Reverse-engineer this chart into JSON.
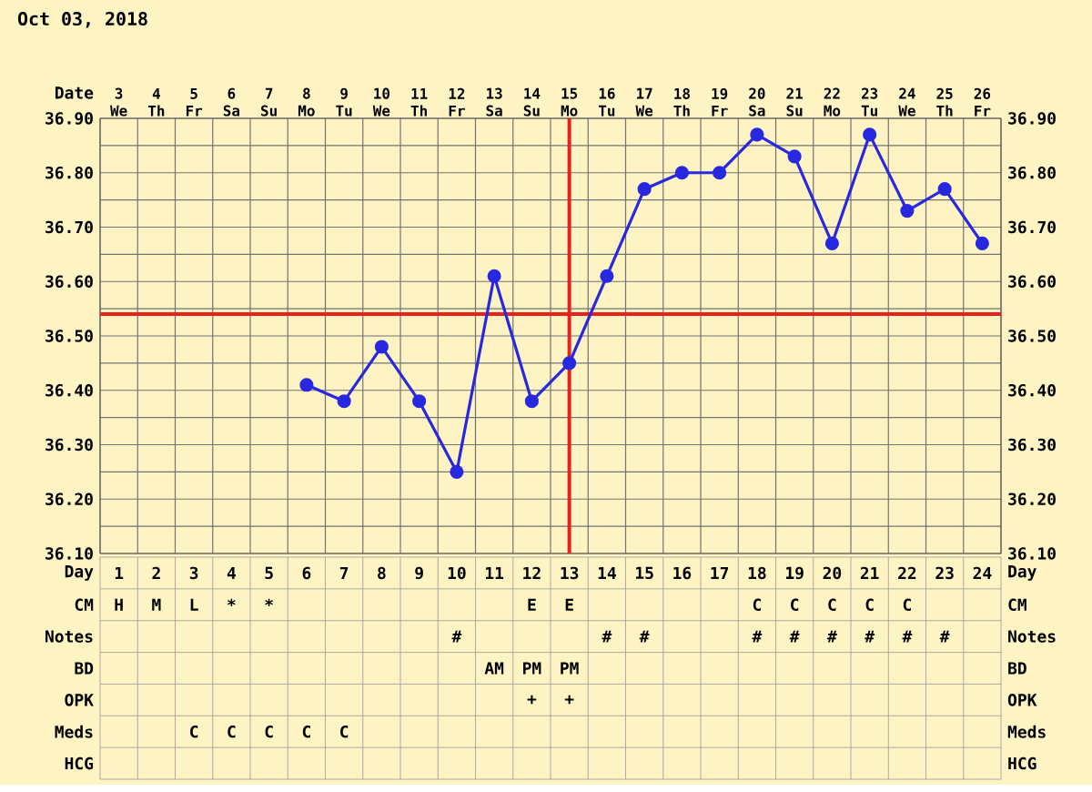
{
  "chart_data": [
    {
      "type": "line",
      "title": "Oct 03, 2018",
      "xlabel": "Date",
      "categories": [
        "3 We",
        "4 Th",
        "5 Fr",
        "6 Sa",
        "7 Su",
        "8 Mo",
        "9 Tu",
        "10 We",
        "11 Th",
        "12 Fr",
        "13 Sa",
        "14 Su",
        "15 Mo",
        "16 Tu",
        "17 We",
        "18 Th",
        "19 Fr",
        "20 Sa",
        "21 Su",
        "22 Mo",
        "23 Tu",
        "24 We",
        "25 Th",
        "26 Fr"
      ],
      "series": [
        {
          "color": "#2828e0",
          "values": [
            null,
            null,
            null,
            null,
            null,
            36.41,
            36.38,
            36.48,
            36.38,
            36.25,
            36.61,
            36.38,
            36.45,
            36.61,
            36.77,
            36.8,
            36.8,
            36.87,
            36.83,
            36.67,
            36.87,
            36.73,
            36.77,
            36.67
          ]
        }
      ],
      "ylim": [
        36.1,
        36.9
      ],
      "yticks": [
        {
          "value": 36.1,
          "label": "36.10"
        },
        {
          "value": 36.2,
          "label": "36.20"
        },
        {
          "value": 36.3,
          "label": "36.30"
        },
        {
          "value": 36.4,
          "label": "36.40"
        },
        {
          "value": 36.5,
          "label": "36.50"
        },
        {
          "value": 36.6,
          "label": "36.60"
        },
        {
          "value": 36.7,
          "label": "36.70"
        },
        {
          "value": 36.8,
          "label": "36.80"
        },
        {
          "value": 36.9,
          "label": "36.90"
        }
      ],
      "y2lim": [
        36.1,
        36.9
      ],
      "y2ticks": [
        {
          "value": 36.1,
          "label": "36.10"
        },
        {
          "value": 36.2,
          "label": "36.20"
        },
        {
          "value": 36.3,
          "label": "36.30"
        },
        {
          "value": 36.4,
          "label": "36.40"
        },
        {
          "value": 36.5,
          "label": "36.50"
        },
        {
          "value": 36.6,
          "label": "36.60"
        },
        {
          "value": 36.7,
          "label": "36.70"
        },
        {
          "value": 36.8,
          "label": "36.80"
        },
        {
          "value": 36.9,
          "label": "36.90"
        }
      ],
      "ref_lines": [
        {
          "axis": "x",
          "value": "15 Mo",
          "color": "#e82020"
        },
        {
          "axis": "y",
          "value": 36.54,
          "color": "#e82020"
        }
      ],
      "grid": true,
      "marker": "circle",
      "line_style": "solid"
    },
    {
      "type": "heatmap",
      "categories": [
        null,
        null,
        null,
        null,
        null,
        null,
        null,
        null,
        null,
        null,
        null,
        null,
        null,
        null,
        null,
        null,
        null,
        null,
        null,
        null,
        null,
        null,
        null,
        null
      ],
      "y_categories": [
        "Day",
        "CM",
        "Notes",
        "BD",
        "OPK",
        "Meds",
        "HCG"
      ],
      "y2_categories": [
        "Day",
        "CM",
        "Notes",
        "BD",
        "OPK",
        "Meds",
        "HCG"
      ],
      "cells": [
        [
          null,
          null,
          null,
          null,
          null,
          null,
          null,
          null,
          null,
          null,
          null,
          null,
          null,
          null,
          null,
          null,
          null,
          null,
          null,
          null,
          null,
          null,
          null,
          null
        ],
        [
          null,
          null,
          null,
          null,
          null,
          null,
          null,
          null,
          null,
          null,
          null,
          null,
          null,
          null,
          null,
          null,
          null,
          null,
          null,
          null,
          null,
          null,
          null,
          null
        ],
        [
          null,
          null,
          null,
          null,
          null,
          null,
          null,
          null,
          null,
          null,
          null,
          null,
          null,
          null,
          null,
          null,
          null,
          null,
          null,
          null,
          null,
          null,
          null,
          null
        ],
        [
          null,
          null,
          null,
          null,
          null,
          null,
          null,
          null,
          null,
          null,
          null,
          null,
          null,
          null,
          null,
          null,
          null,
          null,
          null,
          null,
          null,
          null,
          null,
          null
        ],
        [
          null,
          null,
          null,
          null,
          null,
          null,
          null,
          null,
          null,
          null,
          null,
          null,
          null,
          null,
          null,
          null,
          null,
          null,
          null,
          null,
          null,
          null,
          null,
          null
        ],
        [
          null,
          null,
          null,
          null,
          null,
          null,
          null,
          null,
          null,
          null,
          null,
          null,
          null,
          null,
          null,
          null,
          null,
          null,
          null,
          null,
          null,
          null,
          null,
          null
        ],
        [
          null,
          null,
          null,
          null,
          null,
          null,
          null,
          null,
          null,
          null,
          null,
          null,
          null,
          null,
          null,
          null,
          null,
          null,
          null,
          null,
          null,
          null,
          null,
          null
        ]
      ],
      "cell_labels": [
        [
          "1",
          "2",
          "3",
          "4",
          "5",
          "6",
          "7",
          "8",
          "9",
          "10",
          "11",
          "12",
          "13",
          "14",
          "15",
          "16",
          "17",
          "18",
          "19",
          "20",
          "21",
          "22",
          "23",
          "24"
        ],
        [
          "H",
          "M",
          "L",
          "*",
          "*",
          null,
          null,
          null,
          null,
          null,
          null,
          "E",
          "E",
          null,
          null,
          null,
          null,
          "C",
          "C",
          "C",
          "C",
          "C",
          null,
          null
        ],
        [
          null,
          null,
          null,
          null,
          null,
          null,
          null,
          null,
          null,
          "#",
          null,
          null,
          null,
          "#",
          "#",
          null,
          null,
          "#",
          "#",
          "#",
          "#",
          "#",
          "#",
          null
        ],
        [
          null,
          null,
          null,
          null,
          null,
          null,
          null,
          null,
          null,
          null,
          "AM",
          "PM",
          "PM",
          null,
          null,
          null,
          null,
          null,
          null,
          null,
          null,
          null,
          null,
          null
        ],
        [
          null,
          null,
          null,
          null,
          null,
          null,
          null,
          null,
          null,
          null,
          null,
          "+",
          "+",
          null,
          null,
          null,
          null,
          null,
          null,
          null,
          null,
          null,
          null,
          null
        ],
        [
          null,
          null,
          "C",
          "C",
          "C",
          "C",
          "C",
          null,
          null,
          null,
          null,
          null,
          null,
          null,
          null,
          null,
          null,
          null,
          null,
          null,
          null,
          null,
          null,
          null
        ],
        [
          null,
          null,
          null,
          null,
          null,
          null,
          null,
          null,
          null,
          null,
          null,
          null,
          null,
          null,
          null,
          null,
          null,
          null,
          null,
          null,
          null,
          null,
          null,
          null
        ]
      ]
    }
  ]
}
